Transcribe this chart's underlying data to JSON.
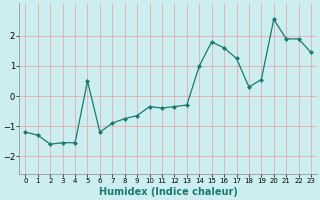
{
  "x": [
    0,
    1,
    2,
    3,
    4,
    5,
    6,
    7,
    8,
    9,
    10,
    11,
    12,
    13,
    14,
    15,
    16,
    17,
    18,
    19,
    20,
    21,
    22,
    23
  ],
  "y": [
    -1.2,
    -1.3,
    -1.6,
    -1.55,
    -1.55,
    0.5,
    -1.2,
    -0.9,
    -0.75,
    -0.65,
    -0.35,
    -0.4,
    -0.35,
    -0.3,
    1.0,
    1.8,
    1.6,
    1.25,
    0.3,
    0.55,
    2.55,
    1.9,
    1.9,
    1.45
  ],
  "line_color": "#1a7a6e",
  "marker": "D",
  "markersize": 2.0,
  "linewidth": 0.9,
  "xlabel": "Humidex (Indice chaleur)",
  "xlim": [
    -0.5,
    23.5
  ],
  "ylim": [
    -2.6,
    3.1
  ],
  "yticks": [
    -2,
    -1,
    0,
    1,
    2
  ],
  "xticks": [
    0,
    1,
    2,
    3,
    4,
    5,
    6,
    7,
    8,
    9,
    10,
    11,
    12,
    13,
    14,
    15,
    16,
    17,
    18,
    19,
    20,
    21,
    22,
    23
  ],
  "background_color": "#cceef0",
  "grid_color": "#e8a0a0",
  "grid_alpha": 1.0,
  "grid_linewidth": 0.5,
  "xlabel_fontsize": 7,
  "tick_fontsize": 5,
  "ytick_fontsize": 6
}
